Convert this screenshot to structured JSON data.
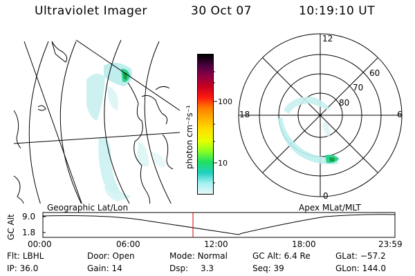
{
  "header": {
    "instrument": "Ultraviolet Imager",
    "date": "30 Oct 07",
    "time": "10:19:10 UT"
  },
  "colorbar": {
    "unit": "photon cm⁻²s⁻¹",
    "ticks": [
      {
        "label": "100",
        "value": 100
      },
      {
        "label": "10",
        "value": 10
      }
    ],
    "colors": [
      "#000000",
      "#4b0040",
      "#8b0044",
      "#c80020",
      "#ff1a10",
      "#ff7a00",
      "#ffb000",
      "#ffe000",
      "#e8ff00",
      "#90ff20",
      "#20e060",
      "#20d0c0",
      "#a0f0f0",
      "#e8f8f8"
    ]
  },
  "left_map": {
    "label": "Geographic Lat/Lon"
  },
  "right_map": {
    "label": "Apex MLat/MLT",
    "mlt_labels": {
      "top": "12",
      "left": "18",
      "right": "6",
      "bottom": "0"
    },
    "lat_labels": [
      "60",
      "70",
      "80"
    ]
  },
  "gc_alt_plot": {
    "ylabel": "GC Alt",
    "yticks": [
      "9.0",
      "1.8"
    ],
    "xticks": [
      "00:00",
      "06:00",
      "12:00",
      "18:00",
      "23:59"
    ],
    "current_time_marker": "10:19"
  },
  "info": {
    "flt": {
      "label": "Flt:",
      "value": "LBHL"
    },
    "ip": {
      "label": "IP:",
      "value": "36.0"
    },
    "door": {
      "label": "Door:",
      "value": "Open"
    },
    "gain": {
      "label": "Gain:",
      "value": "14"
    },
    "mode": {
      "label": "Mode:",
      "value": "Normal"
    },
    "dsp": {
      "label": "Dsp:",
      "value": "3.3"
    },
    "gcalt": {
      "label": "GC Alt:",
      "value": "6.4 Re"
    },
    "seq": {
      "label": "Seq:",
      "value": "39"
    },
    "glat": {
      "label": "GLat:",
      "value": "−57.2"
    },
    "glon": {
      "label": "GLon:",
      "value": "144.0"
    }
  }
}
